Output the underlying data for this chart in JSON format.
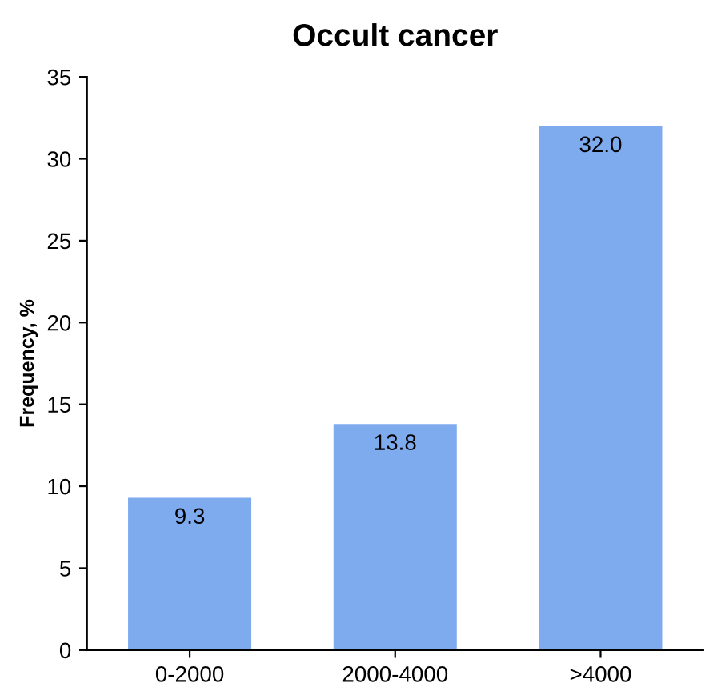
{
  "chart_data": {
    "type": "bar",
    "title": "Occult cancer",
    "ylabel": "Frequency, %",
    "categories": [
      "0-2000",
      "2000-4000",
      ">4000"
    ],
    "values": [
      9.3,
      13.8,
      32.0
    ],
    "value_labels": [
      "9.3",
      "13.8",
      "32.0"
    ],
    "color": "#7eaaee",
    "ylim": [
      0,
      35
    ],
    "yticks": [
      0,
      5,
      10,
      15,
      20,
      25,
      30,
      35
    ],
    "grid": false
  }
}
